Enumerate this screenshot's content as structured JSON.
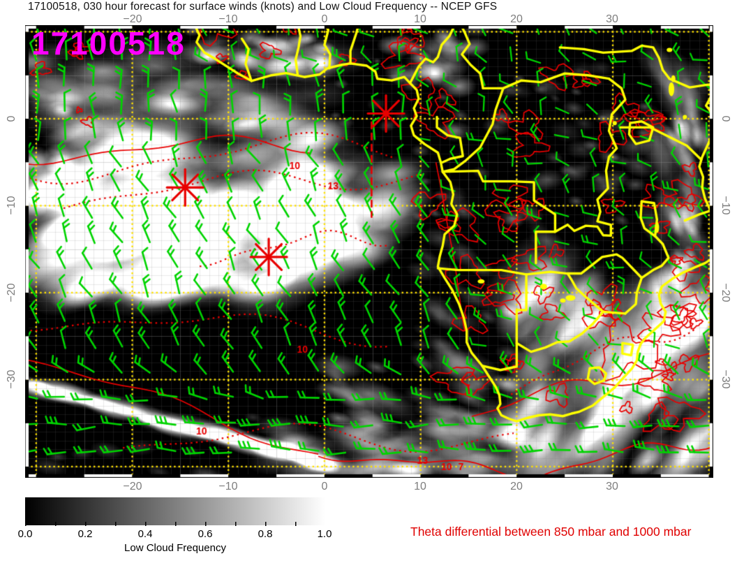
{
  "chart_data": {
    "type": "heatmap",
    "title": "17100518, 030 hour forecast for surface winds (knots) and Low Cloud Frequency -- NCEP GFS",
    "overlay_timestamp": "17100518",
    "source_model": "NCEP GFS",
    "forecast_hour": "030",
    "x_axis": {
      "tick_labels": [
        "−20",
        "−10",
        "0",
        "10",
        "20",
        "30"
      ],
      "tick_values": [
        -20,
        -10,
        0,
        10,
        20,
        30
      ],
      "range": [
        -31.15,
        40.45
      ],
      "unit": "degrees longitude"
    },
    "y_axis": {
      "tick_labels": [
        "0",
        "−10",
        "−20",
        "−30"
      ],
      "tick_values": [
        0,
        -10,
        -20,
        -30
      ],
      "range": [
        10.76,
        -41.3
      ],
      "unit": "degrees latitude"
    },
    "grid": {
      "interval_deg": 10,
      "style": "yellow-dotted",
      "color": "#ffe100"
    },
    "colorbar": {
      "label": "Low Cloud Frequency",
      "tick_labels": [
        "0.0",
        "0.2",
        "0.4",
        "0.6",
        "0.8",
        "1.0"
      ],
      "min": 0,
      "max": 1,
      "gradient": [
        "#000000",
        "#ffffff"
      ]
    },
    "annotation": {
      "text": "Theta differential between 850 mbar and 1000 mbar",
      "color": "#e00000"
    },
    "wind_barbs": {
      "color": "#00d400",
      "units": "knots"
    },
    "coastline_color": "#ffff00",
    "timestamp_color": "#ff00ff",
    "contours": {
      "color": "#e80000",
      "labels": [
        {
          "text": "4",
          "lon": -29.6,
          "lat": 7.9
        },
        {
          "text": "10",
          "lon": -3.1,
          "lat": -5.5
        },
        {
          "text": "13",
          "lon": 0.9,
          "lat": -7.8
        },
        {
          "text": "10",
          "lon": -2.3,
          "lat": -26.6
        },
        {
          "text": "10",
          "lon": -12.8,
          "lat": -36.0
        },
        {
          "text": "13",
          "lon": 10.2,
          "lat": -39.4
        },
        {
          "text": "10",
          "lon": 12.7,
          "lat": -40.1
        },
        {
          "text": "7",
          "lon": 14.2,
          "lat": -40.1
        }
      ]
    },
    "markers": [
      {
        "type": "asterisk",
        "lon": -14.5,
        "lat": -7.9
      },
      {
        "type": "asterisk",
        "lon": -5.8,
        "lat": -15.9
      },
      {
        "type": "asterisk",
        "lon": 6.4,
        "lat": 0.6
      }
    ],
    "track_line": {
      "style": "dashed",
      "lon": 4.9,
      "lat_from": -0.4,
      "lat_to": -11.3,
      "color": "#e80000"
    }
  }
}
